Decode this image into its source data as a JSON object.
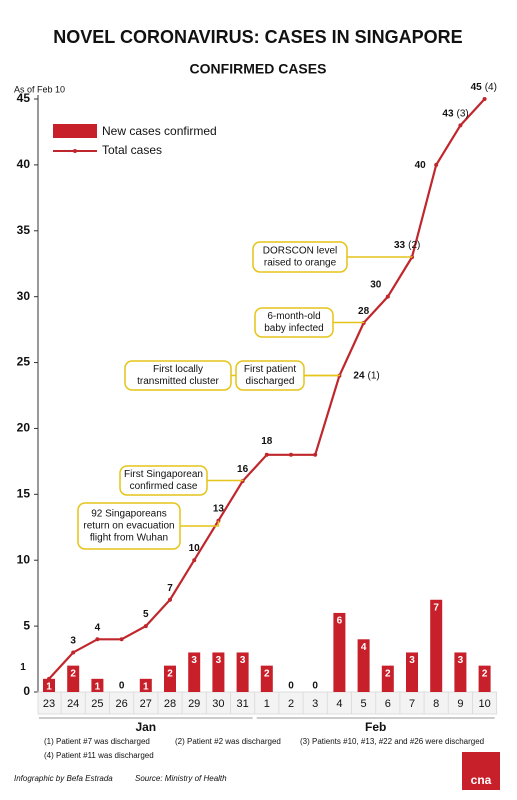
{
  "chart_data": {
    "type": "bar-line",
    "title": "NOVEL CORONAVIRUS: CASES IN SINGAPORE",
    "subtitle": "CONFIRMED CASES",
    "note": "As of Feb 10",
    "categories": [
      "23",
      "24",
      "25",
      "26",
      "27",
      "28",
      "29",
      "30",
      "31",
      "1",
      "2",
      "3",
      "4",
      "5",
      "6",
      "7",
      "8",
      "9",
      "10"
    ],
    "months": [
      {
        "label": "Jan",
        "from": 0,
        "to": 8
      },
      {
        "label": "Feb",
        "from": 9,
        "to": 18
      }
    ],
    "series": [
      {
        "name": "New cases confirmed",
        "type": "bar",
        "color": "#c8202a",
        "values": [
          1,
          2,
          1,
          0,
          1,
          2,
          3,
          3,
          3,
          2,
          0,
          0,
          6,
          4,
          2,
          3,
          7,
          3,
          2
        ]
      },
      {
        "name": "Total cases",
        "type": "line",
        "color": "#c0272d",
        "values": [
          1,
          3,
          4,
          4,
          5,
          7,
          10,
          13,
          16,
          18,
          18,
          18,
          24,
          28,
          30,
          33,
          40,
          43,
          45
        ],
        "value_labels": [
          "1",
          "3",
          "4",
          null,
          "5",
          "7",
          "10",
          "13",
          "16",
          "18",
          null,
          null,
          "24",
          "28",
          "30",
          "33",
          "40",
          "43",
          "45"
        ],
        "footnote_marks": [
          null,
          null,
          null,
          null,
          null,
          null,
          null,
          null,
          null,
          null,
          null,
          null,
          "(1)",
          null,
          null,
          "(2)",
          null,
          "(3)",
          "(4)"
        ]
      }
    ],
    "ylim": [
      0,
      45
    ],
    "yticks": [
      0,
      5,
      10,
      15,
      20,
      25,
      30,
      35,
      40,
      45
    ],
    "annotations": [
      {
        "lines": [
          "92 Singaporeans",
          "return on evacuation",
          "flight from Wuhan"
        ],
        "index": 7
      },
      {
        "lines": [
          "First Singaporean",
          "confirmed case"
        ],
        "index": 8
      },
      {
        "lines": [
          "First locally",
          "transmitted cluster"
        ],
        "index": 12
      },
      {
        "lines": [
          "First patient",
          "discharged"
        ],
        "index": 12
      },
      {
        "lines": [
          "6-month-old",
          "baby infected"
        ],
        "index": 13
      },
      {
        "lines": [
          "DORSCON level",
          "raised to orange"
        ],
        "index": 15
      }
    ],
    "footnotes": [
      "(1) Patient #7 was discharged",
      "(2) Patient #2 was discharged",
      "(3) Patients #10, #13, #22 and #26 were discharged",
      "(4) Patient #11 was discharged"
    ],
    "credit": "Infographic by Befa Estrada",
    "source": "Source: Ministry of Health",
    "logo": "cna"
  }
}
